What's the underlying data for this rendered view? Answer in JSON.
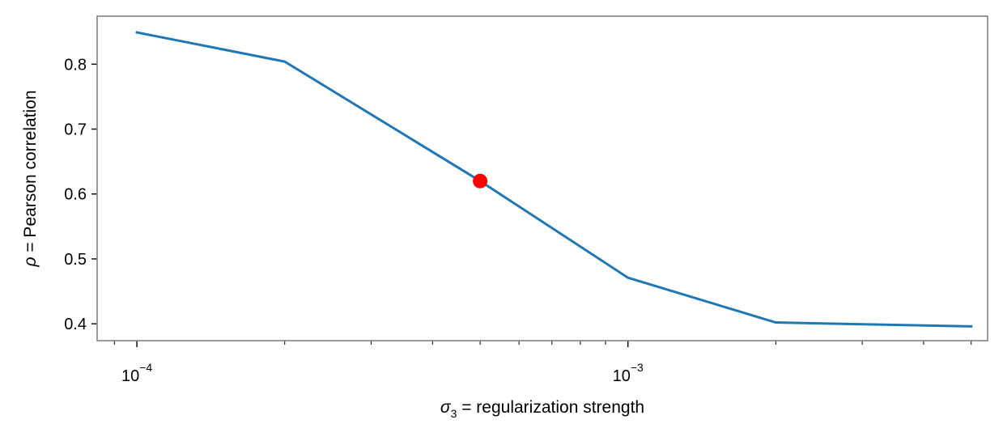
{
  "chart_data": {
    "type": "line",
    "title": "",
    "x_scale": "log",
    "xlim": [
      8.3e-05,
      0.0054
    ],
    "ylim": [
      0.374,
      0.874
    ],
    "grid": false,
    "xlabel": {
      "symbol": "σ",
      "subscript": "3",
      "rest": " = regularization strength"
    },
    "ylabel": {
      "symbol": "ρ",
      "rest": " = Pearson correlation"
    },
    "x_major_ticks": [
      {
        "value": 0.0001,
        "base": "10",
        "exponent": "−4"
      },
      {
        "value": 0.001,
        "base": "10",
        "exponent": "−3"
      }
    ],
    "x_minor_ticks": [
      9e-05,
      0.0002,
      0.0003,
      0.0004,
      0.0005,
      0.0006,
      0.0007,
      0.0008,
      0.0009,
      0.002,
      0.003,
      0.004,
      0.005
    ],
    "y_ticks": [
      {
        "value": 0.4,
        "label": "0.4"
      },
      {
        "value": 0.5,
        "label": "0.5"
      },
      {
        "value": 0.6,
        "label": "0.6"
      },
      {
        "value": 0.7,
        "label": "0.7"
      },
      {
        "value": 0.8,
        "label": "0.8"
      }
    ],
    "series": [
      {
        "color": "#1f77b4",
        "x": [
          0.0001,
          0.0002,
          0.0005,
          0.001,
          0.002,
          0.005
        ],
        "y": [
          0.849,
          0.804,
          0.62,
          0.471,
          0.402,
          0.396
        ]
      }
    ],
    "highlight": {
      "x": 0.0005,
      "y": 0.62,
      "color": "#ff0000"
    },
    "frame_color": "#808080"
  }
}
